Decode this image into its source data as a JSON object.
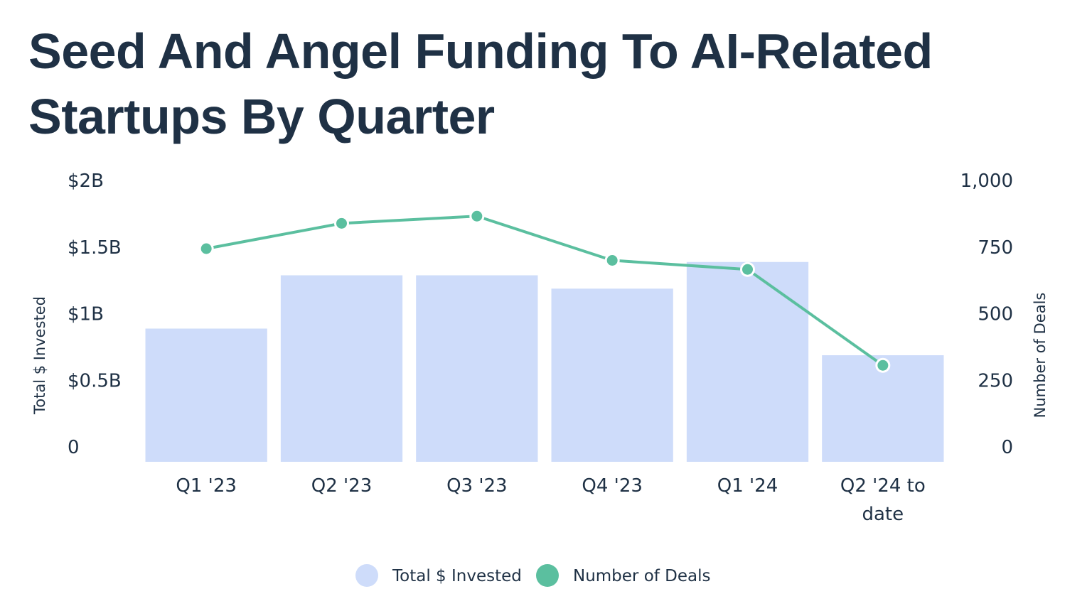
{
  "title": "Seed And Angel Funding To AI-Related Startups By Quarter",
  "colors": {
    "bar": "#cedcfa",
    "line": "#5bbf9f",
    "title": "#1f3145"
  },
  "chart_data": {
    "type": "bar+line",
    "title": "Seed And Angel Funding To AI-Related Startups By Quarter",
    "categories": [
      "Q1 '23",
      "Q2 '23",
      "Q3 '23",
      "Q4 '23",
      "Q1 '24",
      "Q2 '24 to date"
    ],
    "series": [
      {
        "name": "Total $ Invested",
        "type": "bar",
        "axis": "left",
        "values": [
          1.0,
          1.4,
          1.4,
          1.3,
          1.5,
          0.8
        ]
      },
      {
        "name": "Number of Deals",
        "type": "line",
        "axis": "right",
        "values": [
          800,
          895,
          922,
          756,
          722,
          362
        ]
      }
    ],
    "left_axis": {
      "label": "Total $ Invested",
      "ylim": [
        0,
        2
      ],
      "ticks": [
        0,
        0.5,
        1,
        1.5,
        2
      ],
      "tick_labels": [
        "0",
        "$0.5B",
        "$1B",
        "$1.5B",
        "$2B"
      ]
    },
    "right_axis": {
      "label": "Number of Deals",
      "ylim": [
        0,
        1000
      ],
      "ticks": [
        0,
        250,
        500,
        750,
        1000
      ],
      "tick_labels": [
        "0",
        "250",
        "500",
        "750",
        "1,000"
      ]
    },
    "legend": {
      "position": "bottom",
      "entries": [
        "Total $ Invested",
        "Number of Deals"
      ]
    },
    "grid": false
  }
}
